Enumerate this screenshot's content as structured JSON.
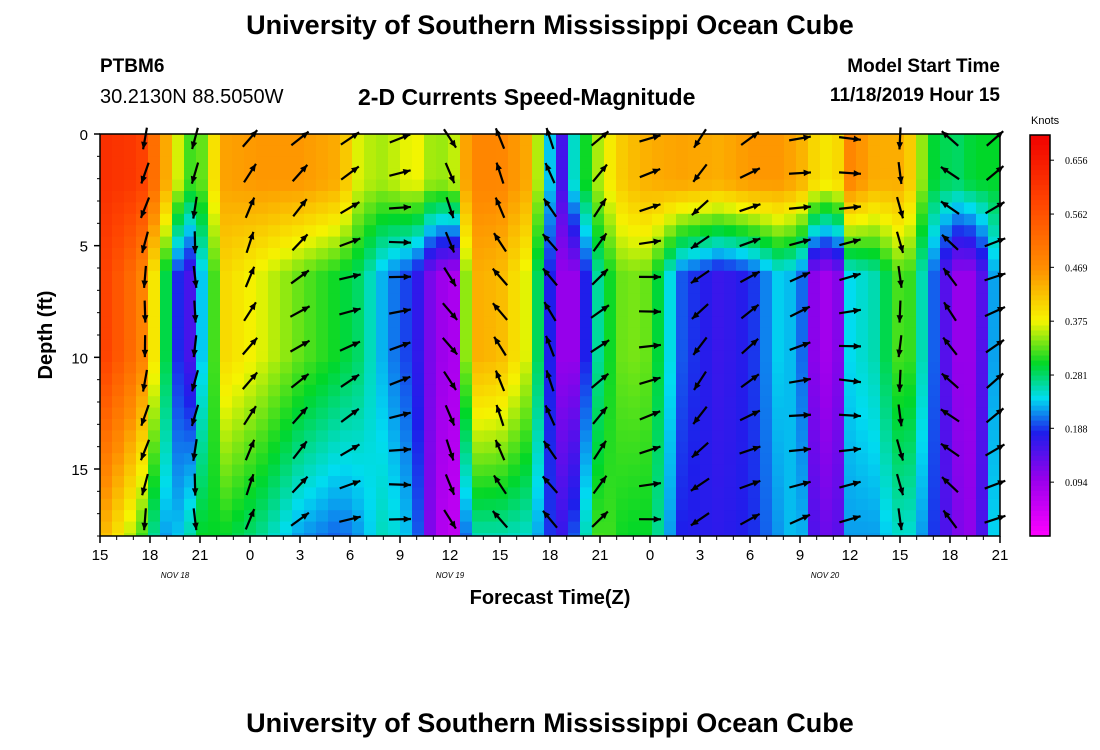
{
  "header": {
    "title": "University of Southern Mississippi Ocean Cube",
    "station_id": "PTBM6",
    "station_coords": "30.2130N 88.5050W",
    "plot_title": "2-D Currents Speed-Magnitude",
    "model_start_label": "Model Start Time",
    "model_start_value": "11/18/2019 Hour 15"
  },
  "footer": {
    "title": "University of Southern Mississippi Ocean Cube"
  },
  "chart_data": {
    "type": "heatmap",
    "xlabel": "Forecast Time(Z)",
    "ylabel": "Depth (ft)",
    "x_tick_labels": [
      "15",
      "18",
      "21",
      "0",
      "3",
      "6",
      "9",
      "12",
      "15",
      "18",
      "21",
      "0",
      "3",
      "6",
      "9",
      "12",
      "15",
      "18",
      "21"
    ],
    "date_labels": [
      {
        "label": "NOV 18",
        "at_tick": 1.5
      },
      {
        "label": "NOV 19",
        "at_tick": 7
      },
      {
        "label": "NOV 20",
        "at_tick": 14.5
      }
    ],
    "y_ticks": [
      0,
      5,
      10,
      15
    ],
    "y_range": [
      0,
      18
    ],
    "colorbar": {
      "unit": "Knots",
      "labels": [
        "0.656",
        "0.562",
        "0.469",
        "0.375",
        "0.281",
        "0.188",
        "0.094"
      ],
      "range": [
        0.0,
        0.7
      ]
    },
    "speed_columns": [
      {
        "x": 0.0,
        "surf": 0.62,
        "deep": 0.44,
        "mid": 0.6
      },
      {
        "x": 0.8,
        "surf": 0.6,
        "deep": 0.33,
        "mid": 0.5
      },
      {
        "x": 1.3,
        "surf": 0.45,
        "deep": 0.22,
        "mid": 0.3
      },
      {
        "x": 1.7,
        "surf": 0.32,
        "deep": 0.24,
        "mid": 0.12
      },
      {
        "x": 2.0,
        "surf": 0.32,
        "deep": 0.3,
        "mid": 0.22
      },
      {
        "x": 2.5,
        "surf": 0.45,
        "deep": 0.3,
        "mid": 0.4
      },
      {
        "x": 3.2,
        "surf": 0.46,
        "deep": 0.27,
        "mid": 0.37
      },
      {
        "x": 4.0,
        "surf": 0.46,
        "deep": 0.22,
        "mid": 0.33
      },
      {
        "x": 4.8,
        "surf": 0.44,
        "deep": 0.2,
        "mid": 0.3
      },
      {
        "x": 5.2,
        "surf": 0.36,
        "deep": 0.22,
        "mid": 0.28
      },
      {
        "x": 5.7,
        "surf": 0.35,
        "deep": 0.26,
        "mid": 0.22
      },
      {
        "x": 6.3,
        "surf": 0.38,
        "deep": 0.22,
        "mid": 0.18
      },
      {
        "x": 6.7,
        "surf": 0.34,
        "deep": 0.08,
        "mid": 0.1
      },
      {
        "x": 7.1,
        "surf": 0.36,
        "deep": 0.06,
        "mid": 0.08
      },
      {
        "x": 7.4,
        "surf": 0.48,
        "deep": 0.26,
        "mid": 0.44
      },
      {
        "x": 8.0,
        "surf": 0.48,
        "deep": 0.26,
        "mid": 0.43
      },
      {
        "x": 8.6,
        "surf": 0.44,
        "deep": 0.25,
        "mid": 0.36
      },
      {
        "x": 8.9,
        "surf": 0.28,
        "deep": 0.2,
        "mid": 0.22
      },
      {
        "x": 9.2,
        "surf": 0.14,
        "deep": 0.16,
        "mid": 0.1
      },
      {
        "x": 9.5,
        "surf": 0.26,
        "deep": 0.2,
        "mid": 0.1
      },
      {
        "x": 10.0,
        "surf": 0.36,
        "deep": 0.33,
        "mid": 0.28
      },
      {
        "x": 10.5,
        "surf": 0.42,
        "deep": 0.3,
        "mid": 0.34
      },
      {
        "x": 11.0,
        "surf": 0.44,
        "deep": 0.3,
        "mid": 0.33
      },
      {
        "x": 11.6,
        "surf": 0.45,
        "deep": 0.18,
        "mid": 0.2
      },
      {
        "x": 12.4,
        "surf": 0.44,
        "deep": 0.17,
        "mid": 0.16
      },
      {
        "x": 13.0,
        "surf": 0.46,
        "deep": 0.18,
        "mid": 0.18
      },
      {
        "x": 13.6,
        "surf": 0.46,
        "deep": 0.22,
        "mid": 0.24
      },
      {
        "x": 14.0,
        "surf": 0.44,
        "deep": 0.24,
        "mid": 0.22
      },
      {
        "x": 14.3,
        "surf": 0.4,
        "deep": 0.14,
        "mid": 0.1
      },
      {
        "x": 14.7,
        "surf": 0.38,
        "deep": 0.12,
        "mid": 0.08
      },
      {
        "x": 15.0,
        "surf": 0.48,
        "deep": 0.22,
        "mid": 0.24
      },
      {
        "x": 15.5,
        "surf": 0.44,
        "deep": 0.22,
        "mid": 0.26
      },
      {
        "x": 16.1,
        "surf": 0.44,
        "deep": 0.26,
        "mid": 0.34
      },
      {
        "x": 16.6,
        "surf": 0.3,
        "deep": 0.2,
        "mid": 0.22
      },
      {
        "x": 17.1,
        "surf": 0.28,
        "deep": 0.12,
        "mid": 0.1
      },
      {
        "x": 17.5,
        "surf": 0.3,
        "deep": 0.1,
        "mid": 0.1
      },
      {
        "x": 18.0,
        "surf": 0.3,
        "deep": 0.28,
        "mid": 0.26
      }
    ],
    "vector_columns_x": [
      0.9,
      1.9,
      3.0,
      4.0,
      5.0,
      6.0,
      7.0,
      8.0,
      9.0,
      10.0,
      11.0,
      12.0,
      13.0,
      14.0,
      15.0,
      16.0,
      17.0,
      17.9
    ],
    "vector_angles_deg": [
      100,
      95,
      -60,
      -40,
      -25,
      -10,
      60,
      -120,
      -120,
      -45,
      -10,
      135,
      -30,
      -15,
      -5,
      85,
      -135,
      -30
    ]
  }
}
